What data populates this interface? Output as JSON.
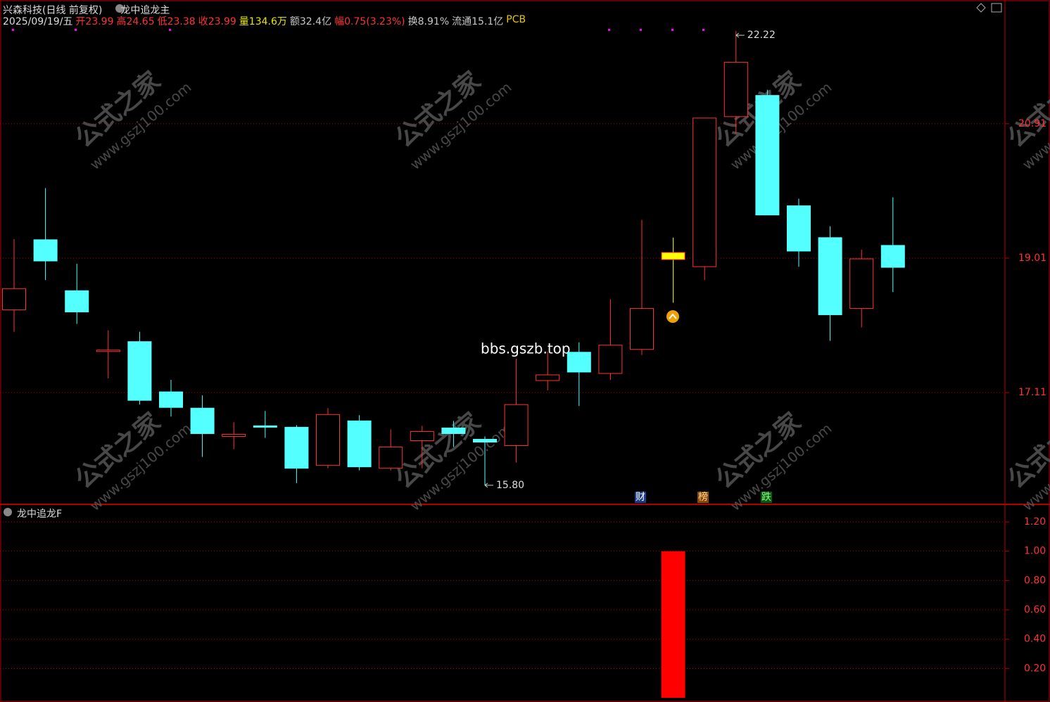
{
  "header": {
    "stock": "兴森科技(日线 前复权)",
    "indicator": "龙中追龙主",
    "date": "2025/09/19/五",
    "info": [
      {
        "label": "开",
        "value": "23.99",
        "label_color": "#ff3232",
        "value_color": "#ff3232"
      },
      {
        "label": "高",
        "value": "24.65",
        "label_color": "#ff3232",
        "value_color": "#ff3232"
      },
      {
        "label": "低",
        "value": "23.38",
        "label_color": "#ff3232",
        "value_color": "#ff3232"
      },
      {
        "label": "收",
        "value": "23.99",
        "label_color": "#ff3232",
        "value_color": "#ff3232"
      },
      {
        "label": "量",
        "value": "134.6万",
        "label_color": "#e6e600",
        "value_color": "#e6e600"
      },
      {
        "label": "额",
        "value": "32.4亿",
        "label_color": "#c8c8c8",
        "value_color": "#c8c8c8"
      },
      {
        "label": "幅",
        "value": "0.75(3.23%)",
        "label_color": "#ff3232",
        "value_color": "#ff3232"
      },
      {
        "label": "换",
        "value": "8.91%",
        "label_color": "#c8c8c8",
        "value_color": "#c8c8c8"
      },
      {
        "label": "流通",
        "value": "15.1亿",
        "label_color": "#c8c8c8",
        "value_color": "#c8c8c8"
      },
      {
        "label": "PCB",
        "value": "",
        "label_color": "#e6c800",
        "value_color": "#e6c800"
      }
    ]
  },
  "watermark": {
    "brand": "公式之家",
    "url": "www.gszj100.com",
    "site": "bbs.gszb.top"
  },
  "signals": [
    "财",
    "榜",
    "跌"
  ],
  "chart_data": [
    {
      "type": "candlestick",
      "up_color": "#ff3232",
      "down_color": "#54ffff",
      "highlight": {
        "index": 21,
        "color": "#ffff00"
      },
      "ylim": [
        15.54,
        22.48
      ],
      "yticks": [
        17.11,
        19.01,
        20.91
      ],
      "grid": true,
      "annotations": [
        "22.22",
        "15.80"
      ],
      "candles": [
        {
          "open": 18.28,
          "high": 19.28,
          "low": 17.97,
          "close": 18.58
        },
        {
          "open": 19.27,
          "high": 20.0,
          "low": 18.7,
          "close": 18.97
        },
        {
          "open": 18.55,
          "high": 18.93,
          "low": 18.08,
          "close": 18.25
        },
        {
          "open": 17.69,
          "high": 17.99,
          "low": 17.31,
          "close": 17.71
        },
        {
          "open": 17.83,
          "high": 17.97,
          "low": 16.94,
          "close": 17.0
        },
        {
          "open": 17.12,
          "high": 17.29,
          "low": 16.77,
          "close": 16.9
        },
        {
          "open": 16.89,
          "high": 17.07,
          "low": 16.2,
          "close": 16.53
        },
        {
          "open": 16.49,
          "high": 16.69,
          "low": 16.31,
          "close": 16.52
        },
        {
          "open": 16.64,
          "high": 16.85,
          "low": 16.47,
          "close": 16.62
        },
        {
          "open": 16.62,
          "high": 16.65,
          "low": 15.83,
          "close": 16.04
        },
        {
          "open": 16.08,
          "high": 16.89,
          "low": 16.04,
          "close": 16.8
        },
        {
          "open": 16.71,
          "high": 16.79,
          "low": 16.01,
          "close": 16.06
        },
        {
          "open": 16.04,
          "high": 16.59,
          "low": 16.01,
          "close": 16.34
        },
        {
          "open": 16.43,
          "high": 16.64,
          "low": 16.04,
          "close": 16.56
        },
        {
          "open": 16.61,
          "high": 16.71,
          "low": 16.34,
          "close": 16.53
        },
        {
          "open": 16.45,
          "high": 16.49,
          "low": 15.8,
          "close": 16.41
        },
        {
          "open": 16.36,
          "high": 17.59,
          "low": 16.12,
          "close": 16.94
        },
        {
          "open": 17.28,
          "high": 17.69,
          "low": 17.14,
          "close": 17.36
        },
        {
          "open": 17.68,
          "high": 17.82,
          "low": 16.92,
          "close": 17.4
        },
        {
          "open": 17.38,
          "high": 18.43,
          "low": 17.29,
          "close": 17.78
        },
        {
          "open": 17.72,
          "high": 19.55,
          "low": 17.64,
          "close": 18.3
        },
        {
          "open": 18.99,
          "high": 19.3,
          "low": 18.38,
          "close": 19.09
        },
        {
          "open": 18.89,
          "high": 20.99,
          "low": 18.7,
          "close": 20.99
        },
        {
          "open": 21.01,
          "high": 22.22,
          "low": 20.77,
          "close": 21.78
        },
        {
          "open": 21.31,
          "high": 21.39,
          "low": 19.62,
          "close": 19.62
        },
        {
          "open": 19.75,
          "high": 19.85,
          "low": 18.89,
          "close": 19.11
        },
        {
          "open": 19.3,
          "high": 19.46,
          "low": 17.84,
          "close": 18.21
        },
        {
          "open": 18.3,
          "high": 19.13,
          "low": 18.03,
          "close": 19.0
        },
        {
          "open": 19.19,
          "high": 19.87,
          "low": 18.53,
          "close": 18.88
        }
      ]
    },
    {
      "type": "bar",
      "title": "龙中追龙F",
      "color": "#ff0000",
      "ylim": [
        0,
        1.32
      ],
      "yticks": [
        {
          "value": 0.2,
          "label": "0.20"
        },
        {
          "value": 0.4,
          "label": "0.40"
        },
        {
          "value": 0.6,
          "label": "0.60"
        },
        {
          "value": 0.8,
          "label": "0.80"
        },
        {
          "value": 1,
          "label": "1.00"
        },
        {
          "value": 1.2,
          "label": "1.20"
        }
      ],
      "grid": true,
      "values": [
        0,
        0,
        0,
        0,
        0,
        0,
        0,
        0,
        0,
        0,
        0,
        0,
        0,
        0,
        0,
        0,
        0,
        0,
        0,
        0,
        0,
        1,
        0,
        0,
        0,
        0,
        0,
        0,
        0
      ]
    }
  ]
}
